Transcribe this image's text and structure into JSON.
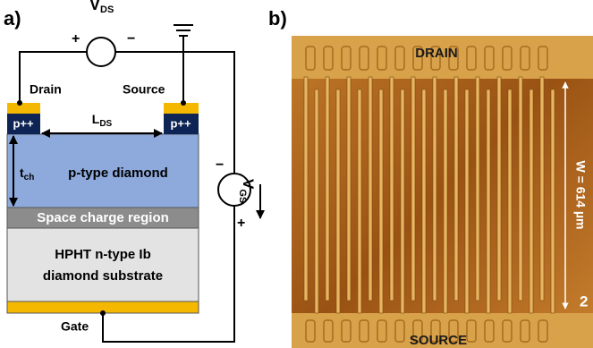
{
  "panel_a": {
    "label": "a)",
    "vds": {
      "symbol": "V",
      "subscript": "DS",
      "plus": "+",
      "minus": "−"
    },
    "drain": "Drain",
    "source": "Source",
    "contacts": [
      "p++",
      "p++"
    ],
    "lds": {
      "symbol": "L",
      "subscript": "DS"
    },
    "tch": {
      "symbol": "t",
      "subscript": "ch"
    },
    "layers": [
      "p-type diamond",
      "Space charge region",
      "HPHT n-type Ib",
      "diamond substrate"
    ],
    "gate": "Gate",
    "vgs": {
      "symbol": "V",
      "subscript": "GS",
      "minus": "−",
      "plus": "+"
    }
  },
  "panel_b": {
    "label": "b)",
    "drain": "DRAIN",
    "source": "SOURCE",
    "width": "W = 614 µm",
    "scale_fragment": "2"
  }
}
